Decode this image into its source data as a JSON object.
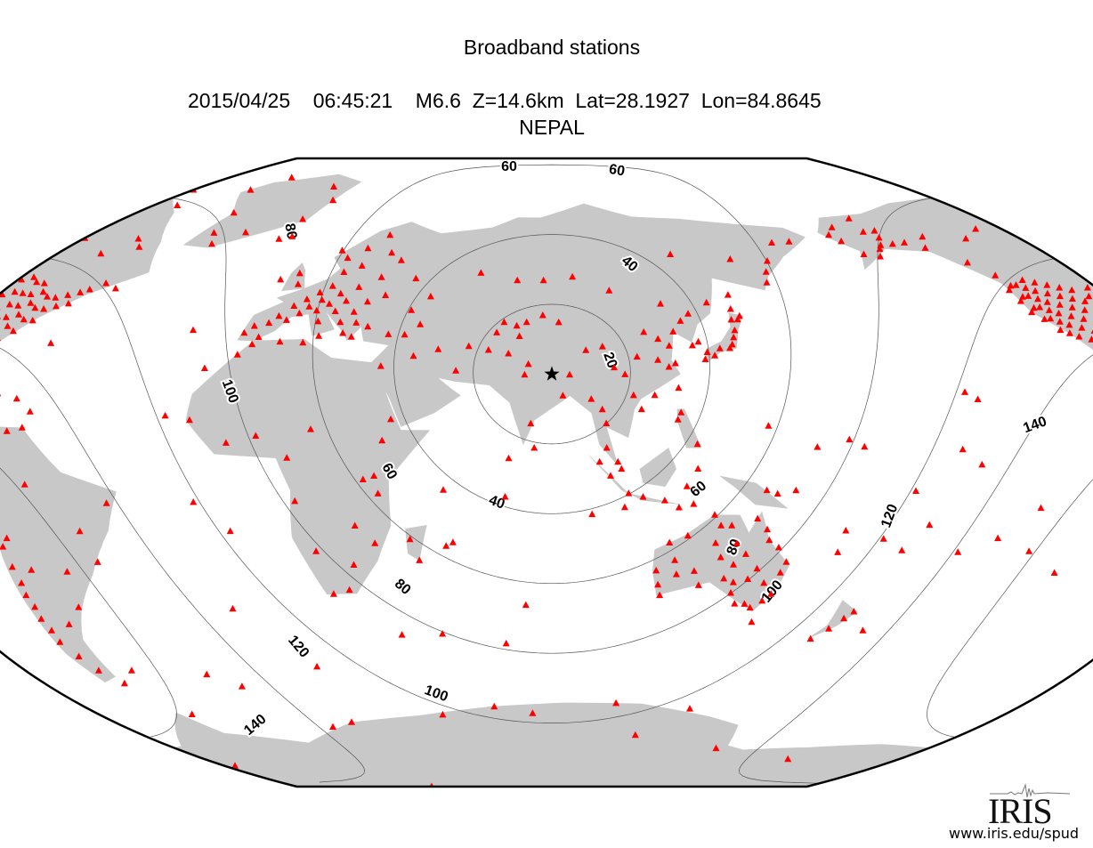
{
  "title": "Broadband stations",
  "event": {
    "date": "2015/04/25",
    "time": "06:45:21",
    "magnitude": "M6.6",
    "depth": "Z=14.6km",
    "lat": "Lat=28.1927",
    "lon": "Lon=84.8645",
    "region": "NEPAL"
  },
  "epicenter": {
    "lon": 84.8645,
    "lat": 28.1927,
    "symbol": "star-icon",
    "color": "#000000"
  },
  "colors": {
    "land": "#c8c8c8",
    "station": "#ff0000",
    "contour": "#555555",
    "ocean": "#ffffff"
  },
  "contour_levels": [
    20,
    40,
    60,
    80,
    100,
    120,
    140
  ],
  "contour_labels": [
    "20",
    "40",
    "40",
    "60",
    "60",
    "60",
    "60",
    "80",
    "80",
    "80",
    "100",
    "100",
    "100",
    "120",
    "120",
    "140",
    "140"
  ],
  "logo": {
    "text": "IRIS",
    "url": "www.iris.edu/spud"
  },
  "stations": [
    [
      -94,
      30
    ],
    [
      -94,
      34
    ],
    [
      -94,
      38
    ],
    [
      -94,
      42
    ],
    [
      -94,
      46
    ],
    [
      -91,
      31
    ],
    [
      -91,
      35
    ],
    [
      -91,
      39
    ],
    [
      -91,
      43
    ],
    [
      -91,
      47
    ],
    [
      -88,
      31
    ],
    [
      -88,
      34
    ],
    [
      -88,
      37
    ],
    [
      -88,
      40
    ],
    [
      -88,
      43
    ],
    [
      -88,
      46
    ],
    [
      -85,
      31
    ],
    [
      -85,
      34
    ],
    [
      -85,
      37
    ],
    [
      -85,
      40
    ],
    [
      -85,
      43
    ],
    [
      -85,
      46
    ],
    [
      -82,
      28
    ],
    [
      -82,
      32
    ],
    [
      -82,
      35
    ],
    [
      -82,
      38
    ],
    [
      -82,
      41
    ],
    [
      -82,
      44
    ],
    [
      -79,
      34
    ],
    [
      -79,
      37
    ],
    [
      -79,
      40
    ],
    [
      -79,
      43
    ],
    [
      -76,
      37
    ],
    [
      -76,
      40
    ],
    [
      -76,
      43
    ],
    [
      -73,
      41
    ],
    [
      -73,
      44
    ],
    [
      -70,
      42
    ],
    [
      -70,
      45
    ],
    [
      -68,
      46
    ],
    [
      -81,
      25
    ],
    [
      -80,
      27
    ],
    [
      -124,
      40
    ],
    [
      -124,
      43
    ],
    [
      -124,
      46
    ],
    [
      -122,
      38
    ],
    [
      -122,
      41
    ],
    [
      -122,
      44
    ],
    [
      -122,
      47
    ],
    [
      -120,
      35
    ],
    [
      -120,
      38
    ],
    [
      -120,
      41
    ],
    [
      -120,
      44
    ],
    [
      -120,
      47
    ],
    [
      -118,
      34
    ],
    [
      -118,
      37
    ],
    [
      -118,
      40
    ],
    [
      -118,
      43
    ],
    [
      -118,
      46
    ],
    [
      -116,
      33
    ],
    [
      -116,
      36
    ],
    [
      -116,
      39
    ],
    [
      -116,
      42
    ],
    [
      -116,
      45
    ],
    [
      -116,
      48
    ],
    [
      -113,
      32
    ],
    [
      -113,
      35
    ],
    [
      -113,
      38
    ],
    [
      -113,
      41
    ],
    [
      -113,
      44
    ],
    [
      -113,
      47
    ],
    [
      -110,
      31
    ],
    [
      -110,
      34
    ],
    [
      -110,
      37
    ],
    [
      -110,
      40
    ],
    [
      -110,
      43
    ],
    [
      -110,
      46
    ],
    [
      -107,
      33
    ],
    [
      -107,
      36
    ],
    [
      -107,
      39
    ],
    [
      -107,
      42
    ],
    [
      -107,
      45
    ],
    [
      -104,
      35
    ],
    [
      -104,
      38
    ],
    [
      -104,
      41
    ],
    [
      -104,
      44
    ],
    [
      -101,
      37
    ],
    [
      -101,
      42
    ],
    [
      -98,
      36
    ],
    [
      -98,
      40
    ],
    [
      -98,
      44
    ],
    [
      -96,
      30
    ],
    [
      -110,
      24
    ],
    [
      -106,
      23
    ],
    [
      -103,
      19
    ],
    [
      -99,
      19
    ],
    [
      -97,
      17
    ],
    [
      -93,
      16
    ],
    [
      -123,
      50
    ],
    [
      -127,
      54
    ],
    [
      -135,
      59
    ],
    [
      -140,
      61
    ],
    [
      -145,
      61
    ],
    [
      -147,
      63
    ],
    [
      -150,
      61
    ],
    [
      -152,
      60
    ],
    [
      -155,
      58
    ],
    [
      -160,
      59
    ],
    [
      -163,
      63
    ],
    [
      -165,
      65
    ],
    [
      -150,
      65
    ],
    [
      -145,
      65
    ],
    [
      -148,
      69
    ],
    [
      -160,
      67
    ],
    [
      -130,
      62
    ],
    [
      -115,
      60
    ],
    [
      -105,
      62
    ],
    [
      -95,
      58
    ],
    [
      -80,
      55
    ],
    [
      -75,
      60
    ],
    [
      -70,
      58
    ],
    [
      -65,
      48
    ],
    [
      -60,
      47
    ],
    [
      -85,
      70
    ],
    [
      -95,
      75
    ],
    [
      -62,
      82
    ],
    [
      -50,
      64
    ],
    [
      -45,
      61
    ],
    [
      -38,
      65
    ],
    [
      -22,
      70
    ],
    [
      -20,
      76
    ],
    [
      -68,
      77
    ],
    [
      -18,
      65
    ],
    [
      -22,
      64
    ],
    [
      -55,
      70
    ],
    [
      -30,
      80
    ],
    [
      -84,
      22
    ],
    [
      -77,
      18
    ],
    [
      -72,
      19
    ],
    [
      -66,
      18
    ],
    [
      -61,
      15
    ],
    [
      -62,
      11
    ],
    [
      -84,
      10
    ],
    [
      -90,
      14
    ],
    [
      -79,
      9
    ],
    [
      -79,
      -2
    ],
    [
      -77,
      -12
    ],
    [
      -70,
      -18
    ],
    [
      -70,
      -23
    ],
    [
      -70,
      -27
    ],
    [
      -71,
      -30
    ],
    [
      -71,
      -33
    ],
    [
      -72,
      -36
    ],
    [
      -72,
      -39
    ],
    [
      -73,
      -42
    ],
    [
      -72,
      -46
    ],
    [
      -71,
      -50
    ],
    [
      -68,
      -54
    ],
    [
      -65,
      -24
    ],
    [
      -60,
      -3
    ],
    [
      -47,
      -15
    ],
    [
      -45,
      -23
    ],
    [
      -38,
      -8
    ],
    [
      -58,
      -34
    ],
    [
      -65,
      -38
    ],
    [
      -75,
      -5
    ],
    [
      -68,
      -16
    ],
    [
      -55,
      -25
    ],
    [
      -66,
      10
    ],
    [
      -9,
      38
    ],
    [
      -7,
      40
    ],
    [
      -4,
      37
    ],
    [
      -3,
      41
    ],
    [
      -1,
      43
    ],
    [
      2,
      42
    ],
    [
      2,
      46
    ],
    [
      5,
      44
    ],
    [
      5,
      48
    ],
    [
      7,
      46
    ],
    [
      8,
      50
    ],
    [
      10,
      45
    ],
    [
      10,
      48
    ],
    [
      11,
      52
    ],
    [
      12,
      42
    ],
    [
      13,
      47
    ],
    [
      14,
      38
    ],
    [
      15,
      50
    ],
    [
      16,
      45
    ],
    [
      18,
      48
    ],
    [
      19,
      42
    ],
    [
      20,
      52
    ],
    [
      21,
      39
    ],
    [
      22,
      45
    ],
    [
      24,
      38
    ],
    [
      24,
      42
    ],
    [
      25,
      48
    ],
    [
      26,
      55
    ],
    [
      28,
      41
    ],
    [
      30,
      60
    ],
    [
      35,
      39
    ],
    [
      40,
      39
    ],
    [
      44,
      42
    ],
    [
      10,
      60
    ],
    [
      15,
      63
    ],
    [
      20,
      67
    ],
    [
      25,
      62
    ],
    [
      6,
      62
    ],
    [
      -3,
      55
    ],
    [
      -1,
      52
    ],
    [
      -8,
      53
    ],
    [
      17,
      58
    ],
    [
      12,
      56
    ],
    [
      30,
      50
    ],
    [
      38,
      55
    ],
    [
      45,
      50
    ],
    [
      40,
      46
    ],
    [
      -16,
      28
    ],
    [
      -8,
      32
    ],
    [
      -5,
      35
    ],
    [
      10,
      36
    ],
    [
      3,
      36
    ],
    [
      -16,
      14
    ],
    [
      -5,
      8
    ],
    [
      3,
      10
    ],
    [
      18,
      12
    ],
    [
      12,
      4
    ],
    [
      33,
      -2
    ],
    [
      36,
      -1
    ],
    [
      38,
      9
    ],
    [
      40,
      15
    ],
    [
      30,
      -15
    ],
    [
      35,
      -20
    ],
    [
      28,
      -26
    ],
    [
      20,
      -34
    ],
    [
      25,
      -33
    ],
    [
      18,
      -22
    ],
    [
      14,
      -8
    ],
    [
      45,
      -19
    ],
    [
      55,
      -21
    ],
    [
      47,
      -25
    ],
    [
      37,
      -6
    ],
    [
      35,
      30
    ],
    [
      44,
      33
    ],
    [
      51,
      35
    ],
    [
      57,
      29
    ],
    [
      60,
      36
    ],
    [
      68,
      40
    ],
    [
      70,
      43
    ],
    [
      74,
      42
    ],
    [
      77,
      43
    ],
    [
      75,
      39
    ],
    [
      78,
      31
    ],
    [
      77,
      28
    ],
    [
      85,
      28
    ],
    [
      87,
      43
    ],
    [
      82,
      45
    ],
    [
      95,
      35
    ],
    [
      100,
      36
    ],
    [
      103,
      30
    ],
    [
      106,
      28
    ],
    [
      110,
      33
    ],
    [
      113,
      40
    ],
    [
      117,
      38
    ],
    [
      116,
      32
    ],
    [
      119,
      30
    ],
    [
      120,
      36
    ],
    [
      122,
      40
    ],
    [
      125,
      43
    ],
    [
      128,
      45
    ],
    [
      104,
      52
    ],
    [
      92,
      56
    ],
    [
      60,
      57
    ],
    [
      73,
      55
    ],
    [
      82,
      55
    ],
    [
      129,
      62
    ],
    [
      135,
      48
    ],
    [
      120,
      48
    ],
    [
      108,
      22
    ],
    [
      110,
      18
    ],
    [
      100,
      14
    ],
    [
      99,
      18
    ],
    [
      96,
      21
    ],
    [
      100,
      7
    ],
    [
      103,
      3
    ],
    [
      104,
      1
    ],
    [
      98,
      3
    ],
    [
      101,
      -1
    ],
    [
      106,
      -6
    ],
    [
      110,
      -7
    ],
    [
      116,
      -8
    ],
    [
      120,
      -10
    ],
    [
      124,
      -9
    ],
    [
      122,
      -4
    ],
    [
      125,
      1
    ],
    [
      120,
      15
    ],
    [
      121,
      17
    ],
    [
      125,
      8
    ],
    [
      114,
      22
    ],
    [
      121,
      24
    ],
    [
      121,
      31
    ],
    [
      127,
      36
    ],
    [
      129,
      37
    ],
    [
      130,
      32
    ],
    [
      131,
      34
    ],
    [
      133,
      33
    ],
    [
      135,
      35
    ],
    [
      138,
      35
    ],
    [
      139,
      36
    ],
    [
      140,
      38
    ],
    [
      141,
      40
    ],
    [
      141,
      43
    ],
    [
      143,
      43
    ],
    [
      144,
      44
    ],
    [
      142,
      46
    ],
    [
      147,
      -6
    ],
    [
      152,
      -5
    ],
    [
      80,
      7
    ],
    [
      73,
      4
    ],
    [
      88,
      22
    ],
    [
      79,
      14
    ],
    [
      72,
      34
    ],
    [
      66,
      35
    ],
    [
      90,
      28
    ],
    [
      158,
      53
    ],
    [
      160,
      56
    ],
    [
      163,
      59
    ],
    [
      170,
      64
    ],
    [
      177,
      64
    ],
    [
      150,
      60
    ],
    [
      143,
      50
    ],
    [
      116,
      -32
    ],
    [
      115,
      -28
    ],
    [
      118,
      -20
    ],
    [
      123,
      -18
    ],
    [
      130,
      -12
    ],
    [
      132,
      -15
    ],
    [
      133,
      -24
    ],
    [
      135,
      -30
    ],
    [
      138,
      -34
    ],
    [
      140,
      -37
    ],
    [
      143,
      -37
    ],
    [
      145,
      -38
    ],
    [
      147,
      -42
    ],
    [
      148,
      -36
    ],
    [
      150,
      -34
    ],
    [
      151,
      -28
    ],
    [
      152,
      -25
    ],
    [
      149,
      -21
    ],
    [
      146,
      -19
    ],
    [
      145,
      -16
    ],
    [
      142,
      -13
    ],
    [
      137,
      -20
    ],
    [
      140,
      -23
    ],
    [
      144,
      -27
    ],
    [
      147,
      -31
    ],
    [
      126,
      -28
    ],
    [
      121,
      -29
    ],
    [
      128,
      -32
    ],
    [
      120,
      -25
    ],
    [
      137,
      -26
    ],
    [
      142,
      -30
    ],
    [
      117,
      -35
    ],
    [
      138,
      -31
    ],
    [
      131,
      -20
    ],
    [
      135,
      -15
    ],
    [
      175,
      -40
    ],
    [
      172,
      -43
    ],
    [
      168,
      -46
    ],
    [
      177,
      -38
    ],
    [
      167,
      -16
    ],
    [
      178,
      -18
    ],
    [
      -176,
      -21
    ],
    [
      -170,
      -14
    ],
    [
      -160,
      -21
    ],
    [
      -150,
      -17
    ],
    [
      -140,
      -9
    ],
    [
      -158,
      21
    ],
    [
      -155,
      19
    ],
    [
      -162,
      6
    ],
    [
      171,
      7
    ],
    [
      158,
      7
    ],
    [
      145,
      13
    ],
    [
      167,
      9
    ],
    [
      -177,
      -43
    ],
    [
      166,
      -22
    ],
    [
      -110,
      -27
    ],
    [
      -90,
      0
    ],
    [
      -140,
      -20
    ],
    [
      -130,
      -25
    ],
    [
      -175,
      -5
    ],
    [
      -157,
      2
    ],
    [
      144,
      -5
    ],
    [
      72,
      -7
    ],
    [
      77,
      -38
    ],
    [
      70,
      -49
    ],
    [
      57,
      -20
    ],
    [
      55,
      -5
    ],
    [
      -14,
      -8
    ],
    [
      -5,
      -16
    ],
    [
      -12,
      -37
    ],
    [
      -25,
      38
    ],
    [
      -23,
      15
    ],
    [
      -65,
      32
    ],
    [
      -28,
      -58
    ],
    [
      -36,
      -54
    ],
    [
      -60,
      -51
    ],
    [
      37,
      -46
    ],
    [
      4,
      -54
    ],
    [
      50,
      -46
    ],
    [
      96,
      -12
    ],
    [
      105,
      -10
    ],
    [
      0,
      -70
    ],
    [
      40,
      -69
    ],
    [
      77,
      -69
    ],
    [
      110,
      -66
    ],
    [
      140,
      -67
    ],
    [
      166,
      -78
    ],
    [
      -60,
      -64
    ],
    [
      -90,
      -80
    ],
    [
      0,
      -90
    ],
    [
      62,
      -67
    ],
    [
      -10,
      -71
    ],
    [
      -150,
      -80
    ],
    [
      123,
      -75
    ]
  ]
}
